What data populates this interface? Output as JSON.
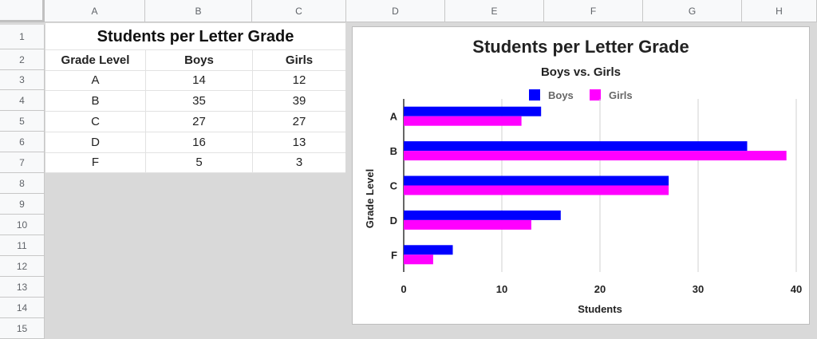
{
  "columns": [
    "A",
    "B",
    "C",
    "D",
    "E",
    "F",
    "G",
    "H"
  ],
  "rows": [
    "1",
    "2",
    "3",
    "4",
    "5",
    "6",
    "7",
    "8",
    "9",
    "10",
    "11",
    "12",
    "13",
    "14",
    "15"
  ],
  "table": {
    "title": "Students per Letter Grade",
    "headers": [
      "Grade Level",
      "Boys",
      "Girls"
    ],
    "rows": [
      [
        "A",
        "14",
        "12"
      ],
      [
        "B",
        "35",
        "39"
      ],
      [
        "C",
        "27",
        "27"
      ],
      [
        "D",
        "16",
        "13"
      ],
      [
        "F",
        "5",
        "3"
      ]
    ]
  },
  "colors": {
    "boys": "#0000ff",
    "girls": "#ff00ff"
  },
  "chart_data": {
    "type": "bar",
    "orientation": "horizontal",
    "title": "Students per Letter Grade",
    "subtitle": "Boys vs. Girls",
    "xlabel": "Students",
    "ylabel": "Grade Level",
    "categories": [
      "A",
      "B",
      "C",
      "D",
      "F"
    ],
    "series": [
      {
        "name": "Boys",
        "values": [
          14,
          35,
          27,
          16,
          5
        ]
      },
      {
        "name": "Girls",
        "values": [
          12,
          39,
          27,
          13,
          3
        ]
      }
    ],
    "xlim": [
      0,
      40
    ],
    "xticks": [
      "0",
      "10",
      "20",
      "30",
      "40"
    ],
    "grid": true,
    "legend": "top"
  }
}
